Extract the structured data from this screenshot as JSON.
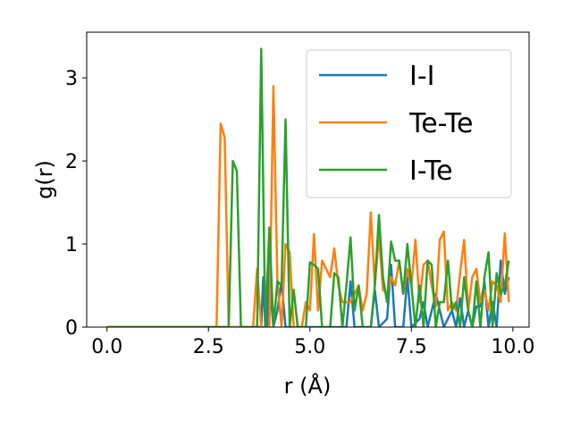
{
  "chart_data": {
    "type": "line",
    "xlabel": "r (Å)",
    "ylabel": "g(r)",
    "xlim": [
      -0.5,
      10.4
    ],
    "ylim": [
      0,
      3.55
    ],
    "xticks": [
      0.0,
      2.5,
      5.0,
      7.5,
      10.0
    ],
    "xtick_labels": [
      "0.0",
      "2.5",
      "5.0",
      "7.5",
      "10.0"
    ],
    "yticks": [
      0,
      1,
      2,
      3
    ],
    "ytick_labels": [
      "0",
      "1",
      "2",
      "3"
    ],
    "grid": false,
    "legend_position": "top-right",
    "series": [
      {
        "name": "I-I",
        "color": "#1f77b4",
        "points": [
          [
            0.0,
            0.0
          ],
          [
            3.8,
            0.0
          ],
          [
            3.85,
            0.6
          ],
          [
            3.9,
            0.0
          ],
          [
            3.95,
            0.0
          ],
          [
            4.0,
            1.15
          ],
          [
            4.05,
            0.3
          ],
          [
            4.1,
            0.0
          ],
          [
            4.2,
            0.2
          ],
          [
            4.3,
            0.55
          ],
          [
            4.4,
            0.0
          ],
          [
            4.5,
            0.0
          ],
          [
            5.0,
            0.0
          ],
          [
            5.9,
            0.0
          ],
          [
            6.0,
            0.55
          ],
          [
            6.1,
            0.0
          ],
          [
            6.5,
            0.0
          ],
          [
            6.6,
            0.45
          ],
          [
            6.7,
            0.0
          ],
          [
            6.9,
            0.1
          ],
          [
            7.0,
            0.75
          ],
          [
            7.1,
            0.0
          ],
          [
            7.3,
            0.0
          ],
          [
            7.4,
            0.6
          ],
          [
            7.5,
            0.0
          ],
          [
            7.7,
            0.1
          ],
          [
            7.8,
            0.3
          ],
          [
            7.9,
            0.0
          ],
          [
            8.1,
            0.4
          ],
          [
            8.2,
            0.2
          ],
          [
            8.3,
            0.0
          ],
          [
            8.5,
            0.2
          ],
          [
            8.6,
            0.0
          ],
          [
            8.7,
            0.35
          ],
          [
            8.8,
            0.0
          ],
          [
            8.9,
            0.2
          ],
          [
            9.0,
            0.0
          ],
          [
            9.1,
            0.25
          ],
          [
            9.2,
            0.25
          ],
          [
            9.3,
            0.55
          ],
          [
            9.4,
            0.0
          ],
          [
            9.5,
            0.3
          ],
          [
            9.6,
            0.0
          ],
          [
            9.7,
            0.8
          ],
          [
            9.8,
            0.4
          ],
          [
            9.9,
            0.6
          ]
        ]
      },
      {
        "name": "Te-Te",
        "color": "#ff7f0e",
        "points": [
          [
            0.0,
            0.0
          ],
          [
            2.7,
            0.0
          ],
          [
            2.8,
            2.45
          ],
          [
            2.9,
            2.28
          ],
          [
            3.0,
            0.0
          ],
          [
            3.6,
            0.0
          ],
          [
            3.7,
            0.7
          ],
          [
            3.8,
            0.0
          ],
          [
            3.9,
            0.0
          ],
          [
            4.0,
            0.0
          ],
          [
            4.1,
            2.9
          ],
          [
            4.2,
            0.55
          ],
          [
            4.3,
            0.0
          ],
          [
            4.4,
            1.0
          ],
          [
            4.5,
            0.9
          ],
          [
            4.6,
            0.0
          ],
          [
            4.8,
            0.0
          ],
          [
            4.9,
            0.3
          ],
          [
            5.0,
            0.2
          ],
          [
            5.1,
            1.12
          ],
          [
            5.2,
            0.2
          ],
          [
            5.3,
            0.8
          ],
          [
            5.4,
            0.7
          ],
          [
            5.5,
            0.6
          ],
          [
            5.6,
            0.95
          ],
          [
            5.7,
            0.5
          ],
          [
            5.8,
            0.3
          ],
          [
            6.0,
            0.3
          ],
          [
            6.2,
            0.5
          ],
          [
            6.3,
            0.2
          ],
          [
            6.4,
            0.4
          ],
          [
            6.5,
            1.38
          ],
          [
            6.6,
            0.5
          ],
          [
            6.7,
            1.1
          ],
          [
            6.8,
            0.45
          ],
          [
            6.9,
            0.4
          ],
          [
            7.0,
            0.6
          ],
          [
            7.1,
            0.5
          ],
          [
            7.2,
            0.8
          ],
          [
            7.3,
            0.4
          ],
          [
            7.4,
            0.7
          ],
          [
            7.5,
            0.5
          ],
          [
            7.6,
            1.05
          ],
          [
            7.7,
            0.3
          ],
          [
            7.8,
            0.75
          ],
          [
            7.9,
            0.8
          ],
          [
            8.0,
            0.5
          ],
          [
            8.1,
            0.25
          ],
          [
            8.2,
            1.05
          ],
          [
            8.3,
            1.15
          ],
          [
            8.4,
            0.2
          ],
          [
            8.5,
            0.3
          ],
          [
            8.6,
            0.2
          ],
          [
            8.7,
            0.65
          ],
          [
            8.8,
            1.05
          ],
          [
            8.9,
            0.2
          ],
          [
            9.0,
            0.6
          ],
          [
            9.1,
            0.7
          ],
          [
            9.2,
            0.3
          ],
          [
            9.3,
            0.45
          ],
          [
            9.4,
            0.2
          ],
          [
            9.5,
            0.55
          ],
          [
            9.6,
            0.5
          ],
          [
            9.7,
            0.3
          ],
          [
            9.8,
            1.13
          ],
          [
            9.9,
            0.3
          ]
        ]
      },
      {
        "name": "I-Te",
        "color": "#2ca02c",
        "points": [
          [
            0.0,
            0.0
          ],
          [
            3.0,
            0.0
          ],
          [
            3.1,
            2.0
          ],
          [
            3.2,
            1.88
          ],
          [
            3.3,
            0.0
          ],
          [
            3.7,
            0.0
          ],
          [
            3.8,
            3.35
          ],
          [
            3.9,
            0.0
          ],
          [
            4.0,
            1.2
          ],
          [
            4.1,
            0.0
          ],
          [
            4.2,
            0.55
          ],
          [
            4.3,
            0.5
          ],
          [
            4.4,
            2.5
          ],
          [
            4.5,
            0.0
          ],
          [
            4.6,
            0.45
          ],
          [
            4.7,
            0.0
          ],
          [
            4.9,
            0.0
          ],
          [
            5.0,
            0.78
          ],
          [
            5.1,
            0.75
          ],
          [
            5.2,
            0.7
          ],
          [
            5.3,
            0.0
          ],
          [
            5.5,
            0.0
          ],
          [
            5.6,
            0.65
          ],
          [
            5.7,
            0.6
          ],
          [
            5.8,
            0.0
          ],
          [
            5.9,
            0.5
          ],
          [
            6.0,
            1.08
          ],
          [
            6.1,
            0.2
          ],
          [
            6.2,
            0.5
          ],
          [
            6.3,
            0.0
          ],
          [
            6.5,
            0.0
          ],
          [
            6.6,
            0.5
          ],
          [
            6.7,
            1.35
          ],
          [
            6.8,
            0.6
          ],
          [
            6.9,
            0.3
          ],
          [
            7.0,
            1.03
          ],
          [
            7.1,
            0.8
          ],
          [
            7.2,
            0.8
          ],
          [
            7.3,
            0.4
          ],
          [
            7.4,
            1.0
          ],
          [
            7.5,
            0.5
          ],
          [
            7.6,
            0.0
          ],
          [
            7.7,
            0.5
          ],
          [
            7.8,
            0.0
          ],
          [
            7.9,
            0.8
          ],
          [
            8.0,
            0.75
          ],
          [
            8.1,
            0.0
          ],
          [
            8.2,
            0.3
          ],
          [
            8.3,
            0.3
          ],
          [
            8.4,
            0.8
          ],
          [
            8.5,
            0.2
          ],
          [
            8.6,
            0.3
          ],
          [
            8.7,
            0.0
          ],
          [
            8.8,
            0.6
          ],
          [
            8.9,
            0.2
          ],
          [
            9.0,
            0.0
          ],
          [
            9.1,
            0.55
          ],
          [
            9.2,
            0.0
          ],
          [
            9.3,
            0.6
          ],
          [
            9.4,
            0.9
          ],
          [
            9.5,
            0.0
          ],
          [
            9.6,
            0.65
          ],
          [
            9.7,
            0.4
          ],
          [
            9.8,
            0.5
          ],
          [
            9.9,
            0.8
          ]
        ]
      }
    ]
  }
}
